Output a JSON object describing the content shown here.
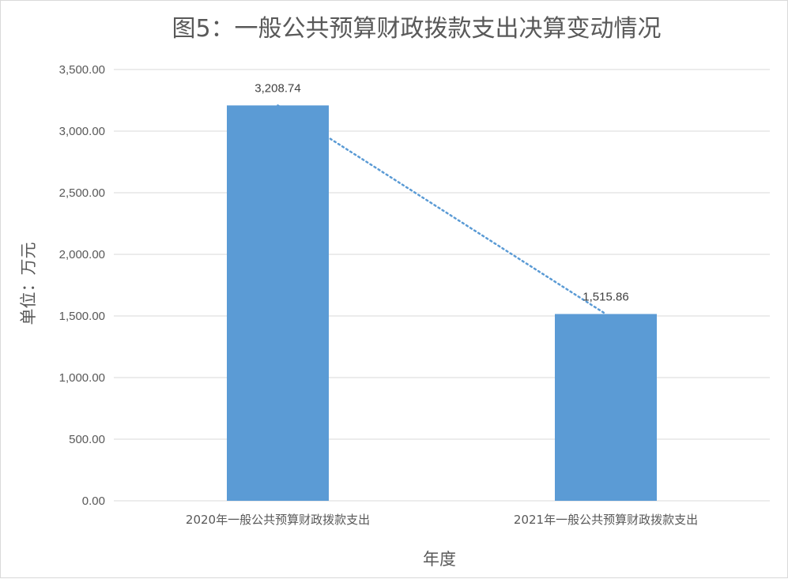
{
  "chart_data": {
    "type": "bar",
    "title": "图5：一般公共预算财政拨款支出决算变动情况",
    "xlabel": "年度",
    "ylabel": "单位：万元",
    "categories": [
      "2020年一般公共预算财政拨款支出",
      "2021年一般公共预算财政拨款支出"
    ],
    "values": [
      3208.74,
      1515.86
    ],
    "data_labels": [
      "3,208.74",
      "1,515.86"
    ],
    "ylim": [
      0,
      3500
    ],
    "yticks": [
      0,
      500,
      1000,
      1500,
      2000,
      2500,
      3000,
      3500
    ],
    "ytick_labels": [
      "0.00",
      "500.00",
      "1,000.00",
      "1,500.00",
      "2,000.00",
      "2,500.00",
      "3,000.00",
      "3,500.00"
    ],
    "grid": true,
    "trendline": "linear, dotted",
    "colors": {
      "bar": "#5b9bd5",
      "trendline": "#5b9bd5",
      "grid": "#d9d9d9",
      "text": "#595959"
    }
  }
}
